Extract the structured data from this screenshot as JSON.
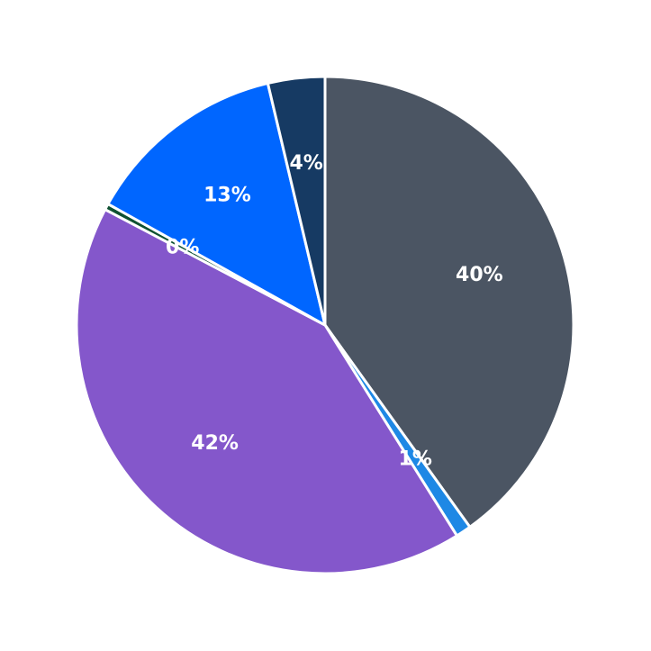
{
  "chart_data": {
    "type": "pie",
    "categories": [
      null,
      null,
      null,
      null,
      null,
      null
    ],
    "values": [
      40.1,
      1.0,
      41.6,
      0.4,
      13.2,
      3.7
    ],
    "value_labels": [
      "40%",
      "1%",
      "42%",
      "0%",
      "13%",
      "4%"
    ],
    "colors": [
      "#4b5563",
      "#1e88e5",
      "#8457cb",
      "#0f5132",
      "#0066ff",
      "#163a63"
    ]
  }
}
